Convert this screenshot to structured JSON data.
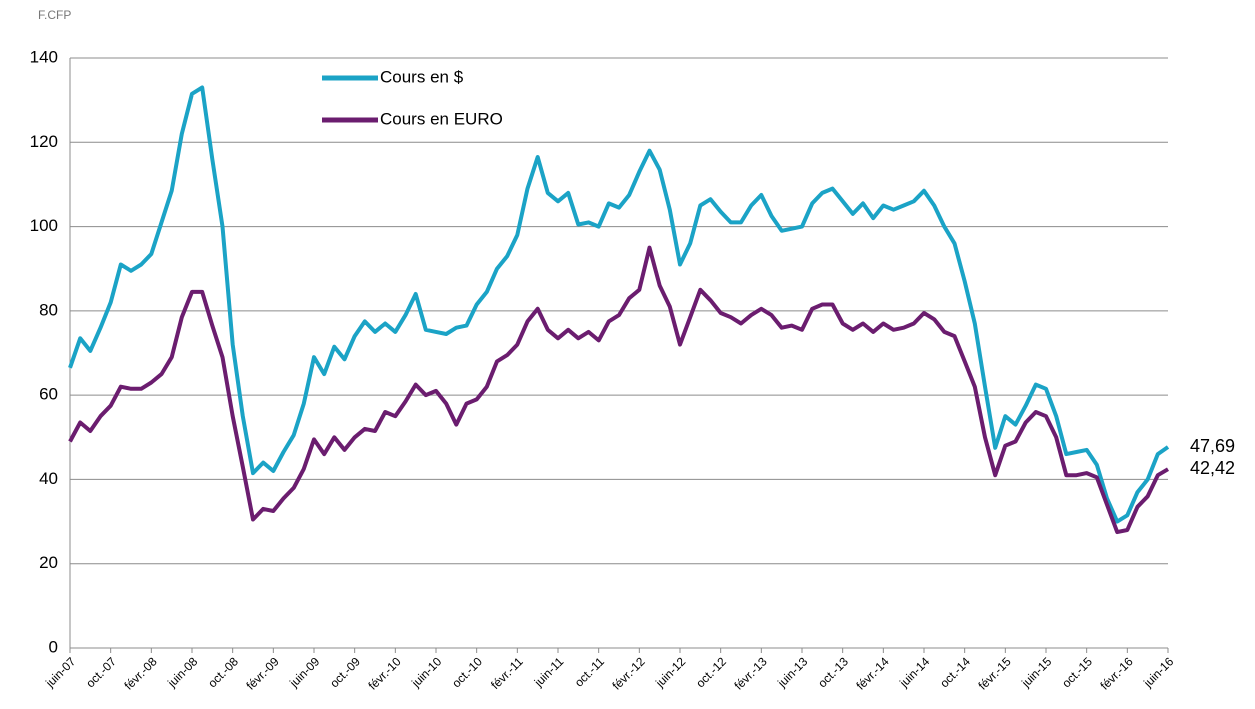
{
  "chart_data": {
    "type": "line",
    "y_unit": "F.CFP",
    "categories": [
      "juin-07",
      null,
      null,
      null,
      "oct.-07",
      null,
      null,
      null,
      "févr.-08",
      null,
      null,
      null,
      "juin-08",
      null,
      null,
      null,
      "oct.-08",
      null,
      null,
      null,
      "févr.-09",
      null,
      null,
      null,
      "juin-09",
      null,
      null,
      null,
      "oct.-09",
      null,
      null,
      null,
      "févr.-10",
      null,
      null,
      null,
      "juin-10",
      null,
      null,
      null,
      "oct.-10",
      null,
      null,
      null,
      "févr.-11",
      null,
      null,
      null,
      "juin-11",
      null,
      null,
      null,
      "oct.-11",
      null,
      null,
      null,
      "févr.-12",
      null,
      null,
      null,
      "juin-12",
      null,
      null,
      null,
      "oct.-12",
      null,
      null,
      null,
      "févr.-13",
      null,
      null,
      null,
      "juin-13",
      null,
      null,
      null,
      "oct.-13",
      null,
      null,
      null,
      "févr.-14",
      null,
      null,
      null,
      "juin-14",
      null,
      null,
      null,
      "oct.-14",
      null,
      null,
      null,
      "févr.-15",
      null,
      null,
      null,
      "juin-15",
      null,
      null,
      null,
      "oct.-15",
      null,
      null,
      null,
      "févr.-16",
      null,
      null,
      null,
      "juin-16"
    ],
    "series": [
      {
        "name": "Cours en $",
        "color": "#1ba3c6",
        "values": [
          66.5,
          73.5,
          70.5,
          76,
          82,
          91,
          89.5,
          91,
          93.5,
          101,
          108.5,
          122,
          131.5,
          133,
          116,
          100,
          72,
          55,
          41.5,
          44,
          42,
          46.5,
          50.5,
          58,
          69,
          65,
          71.5,
          68.5,
          74,
          77.5,
          75,
          77,
          75,
          79,
          84,
          75.5,
          75,
          74.5,
          76,
          76.5,
          81.5,
          84.5,
          90,
          93,
          98,
          109,
          116.5,
          108,
          106,
          108,
          100.5,
          101,
          100,
          105.5,
          104.5,
          107.5,
          113,
          118,
          113.5,
          104,
          91,
          96,
          105,
          106.5,
          103.5,
          101,
          101,
          105,
          107.5,
          102.5,
          99,
          99.5,
          100,
          105.5,
          108,
          109,
          106,
          103,
          105.5,
          102,
          105,
          104,
          105,
          106,
          108.5,
          105,
          100,
          96,
          87,
          77,
          62,
          47.5,
          55,
          53,
          57.5,
          62.5,
          61.5,
          55,
          46,
          46.5,
          47,
          43.5,
          35.5,
          30,
          31.5,
          37,
          40,
          46,
          47.69
        ],
        "value_labels": [
          null,
          null,
          null,
          null,
          null,
          null,
          null,
          null,
          null,
          null,
          null,
          null,
          null,
          null,
          null,
          null,
          null,
          null,
          null,
          null,
          null,
          null,
          null,
          null,
          null,
          null,
          null,
          null,
          null,
          null,
          null,
          null,
          null,
          null,
          null,
          null,
          null,
          null,
          null,
          null,
          null,
          null,
          null,
          null,
          null,
          null,
          null,
          null,
          null,
          null,
          null,
          null,
          null,
          null,
          null,
          null,
          null,
          null,
          null,
          null,
          null,
          null,
          null,
          null,
          null,
          null,
          null,
          null,
          null,
          null,
          null,
          null,
          null,
          null,
          null,
          null,
          null,
          null,
          null,
          null,
          null,
          null,
          null,
          null,
          null,
          null,
          null,
          null,
          null,
          null,
          null,
          null,
          null,
          null,
          null,
          null,
          null,
          null,
          null,
          null,
          null,
          null,
          null,
          null,
          null,
          null,
          null,
          null,
          "47,69"
        ]
      },
      {
        "name": "Cours en EURO",
        "color": "#6b1d6f",
        "values": [
          49,
          53.5,
          51.5,
          55,
          57.5,
          62,
          61.5,
          61.5,
          63,
          65,
          69,
          78.5,
          84.5,
          84.5,
          76.5,
          69,
          55,
          43,
          30.5,
          33,
          32.5,
          35.5,
          38,
          42.5,
          49.5,
          46,
          50,
          47,
          50,
          52,
          51.5,
          56,
          55,
          58.5,
          62.5,
          60,
          61,
          58,
          53,
          58,
          59,
          62,
          68,
          69.5,
          72,
          77.5,
          80.5,
          75.5,
          73.5,
          75.5,
          73.5,
          75,
          73,
          77.5,
          79,
          83,
          85,
          95,
          86,
          81,
          72,
          78.5,
          85,
          82.5,
          79.5,
          78.5,
          77,
          79,
          80.5,
          79,
          76,
          76.5,
          75.5,
          80.5,
          81.5,
          81.5,
          77,
          75.5,
          77,
          75,
          77,
          75.5,
          76,
          77,
          79.5,
          78,
          75,
          74,
          68,
          62,
          50,
          41,
          48,
          49,
          53.5,
          56,
          55,
          50,
          41,
          41,
          41.5,
          40.5,
          34,
          27.5,
          28,
          33.5,
          36,
          41,
          42.42
        ],
        "value_labels": [
          null,
          null,
          null,
          null,
          null,
          null,
          null,
          null,
          null,
          null,
          null,
          null,
          null,
          null,
          null,
          null,
          null,
          null,
          null,
          null,
          null,
          null,
          null,
          null,
          null,
          null,
          null,
          null,
          null,
          null,
          null,
          null,
          null,
          null,
          null,
          null,
          null,
          null,
          null,
          null,
          null,
          null,
          null,
          null,
          null,
          null,
          null,
          null,
          null,
          null,
          null,
          null,
          null,
          null,
          null,
          null,
          null,
          null,
          null,
          null,
          null,
          null,
          null,
          null,
          null,
          null,
          null,
          null,
          null,
          null,
          null,
          null,
          null,
          null,
          null,
          null,
          null,
          null,
          null,
          null,
          null,
          null,
          null,
          null,
          null,
          null,
          null,
          null,
          null,
          null,
          null,
          null,
          null,
          null,
          null,
          null,
          null,
          null,
          null,
          null,
          null,
          null,
          null,
          null,
          null,
          null,
          null,
          null,
          "42,42"
        ]
      }
    ],
    "ylim": [
      0,
      140
    ],
    "yticks": [
      0,
      20,
      40,
      60,
      80,
      100,
      120,
      140
    ],
    "grid": true
  }
}
